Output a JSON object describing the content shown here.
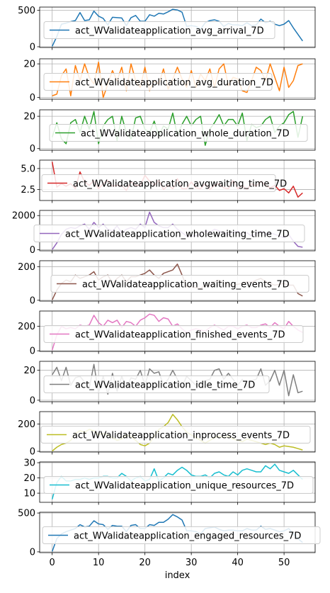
{
  "chart_data": {
    "type": "line",
    "xlabel": "index",
    "xticks": [
      0,
      10,
      20,
      30,
      40,
      50
    ],
    "xlim": [
      -2.7,
      56.7
    ],
    "grid": true,
    "legend_loc": "best",
    "panels": [
      {
        "name": "act_WValidateapplication_avg_arrival_7D",
        "color": "#1f77b4",
        "ylim": [
          -10,
          545
        ],
        "yticks": [
          0,
          500
        ],
        "values": [
          5,
          140,
          310,
          325,
          345,
          360,
          470,
          360,
          370,
          490,
          420,
          390,
          300,
          405,
          400,
          395,
          290,
          400,
          430,
          350,
          350,
          440,
          420,
          460,
          450,
          480,
          515,
          505,
          475,
          280,
          290,
          280,
          240,
          330,
          360,
          370,
          350,
          280,
          320,
          300,
          300,
          290,
          330,
          290,
          300,
          380,
          330,
          350,
          310,
          290,
          310,
          360,
          260,
          170,
          80
        ]
      },
      {
        "name": "act_WValidateapplication_avg_duration_7D",
        "color": "#ff7f0e",
        "ylim": [
          -1,
          23
        ],
        "yticks": [
          0,
          20
        ],
        "values": [
          1,
          2,
          13,
          17,
          1,
          19,
          10,
          20,
          12,
          8,
          21,
          0,
          8,
          16,
          10,
          18,
          4,
          20,
          10,
          6,
          18,
          4,
          10,
          8,
          17,
          5,
          11,
          18,
          11,
          6,
          16,
          6,
          14,
          10,
          17,
          6,
          17,
          20,
          7,
          12,
          11,
          4,
          3,
          10,
          18,
          16,
          10,
          20,
          12,
          4,
          18,
          6,
          10,
          19,
          20
        ]
      },
      {
        "name": "act_WValidateapplication_whole_duration_7D",
        "color": "#2ca02c",
        "ylim": [
          -1,
          24
        ],
        "yticks": [
          0,
          20
        ],
        "values": [
          7,
          16,
          6,
          3,
          16,
          18,
          10,
          20,
          12,
          23,
          3,
          14,
          18,
          20,
          5,
          20,
          10,
          6,
          19,
          20,
          12,
          10,
          17,
          8,
          14,
          12,
          22,
          8,
          15,
          20,
          14,
          18,
          20,
          2,
          12,
          16,
          21,
          14,
          18,
          18,
          14,
          22,
          5,
          15,
          13,
          14,
          18,
          20,
          10,
          14,
          16,
          21,
          23,
          7,
          20
        ]
      },
      {
        "name": "act_WValidateapplication_avgwaiting_time_7D",
        "color": "#d62728",
        "ylim": [
          1.2,
          6.0
        ],
        "yticks": [
          2.5,
          5.0
        ],
        "yticklabels": [
          "2.5",
          "5.0"
        ],
        "values": [
          5.8,
          2.8,
          3.2,
          2.9,
          3.2,
          2.6,
          4.6,
          3.4,
          3.0,
          3.6,
          2.6,
          3.2,
          3.6,
          2.9,
          3.0,
          3.0,
          2.4,
          3.4,
          3.0,
          3.0,
          4.2,
          3.5,
          3.0,
          3.6,
          2.5,
          3.0,
          2.6,
          3.8,
          2.6,
          2.6,
          3.4,
          2.7,
          2.6,
          3.2,
          2.5,
          3.0,
          3.2,
          2.7,
          2.6,
          3.6,
          2.6,
          3.0,
          2.5,
          3.2,
          2.9,
          3.5,
          3.0,
          2.7,
          3.0,
          2.4,
          2.6,
          2.1,
          2.9,
          1.6,
          2.1
        ]
      },
      {
        "name": "act_WValidateapplication_wholewaiting_time_7D",
        "color": "#9467bd",
        "ylim": [
          -60,
          2300
        ],
        "yticks": [
          0,
          2000
        ],
        "values": [
          10,
          400,
          900,
          1200,
          1300,
          1250,
          1400,
          1500,
          1200,
          1600,
          1300,
          1500,
          1200,
          1100,
          1400,
          1000,
          1200,
          1300,
          1200,
          1500,
          1300,
          2200,
          1600,
          1400,
          1300,
          1300,
          1500,
          1200,
          1000,
          800,
          780,
          820,
          900,
          1100,
          1000,
          1200,
          1100,
          1000,
          900,
          1000,
          1100,
          900,
          1000,
          800,
          950,
          1100,
          900,
          1000,
          900,
          800,
          700,
          900,
          500,
          200,
          150
        ]
      },
      {
        "name": "act_WValidateapplication_waiting_events_7D",
        "color": "#8c564b",
        "ylim": [
          -5,
          235
        ],
        "yticks": [
          0,
          200
        ],
        "values": [
          2,
          60,
          100,
          120,
          110,
          150,
          130,
          140,
          150,
          170,
          120,
          140,
          150,
          100,
          130,
          150,
          110,
          140,
          140,
          150,
          160,
          180,
          150,
          130,
          160,
          170,
          180,
          215,
          150,
          80,
          80,
          75,
          70,
          90,
          85,
          110,
          120,
          100,
          95,
          90,
          95,
          100,
          110,
          105,
          120,
          130,
          110,
          100,
          90,
          95,
          100,
          90,
          90,
          40,
          25
        ]
      },
      {
        "name": "act_WValidateapplication_finished_events_7D",
        "color": "#e377c2",
        "ylim": [
          -5,
          325
        ],
        "yticks": [
          0,
          200
        ],
        "values": [
          5,
          130,
          200,
          180,
          190,
          180,
          210,
          200,
          210,
          290,
          230,
          200,
          250,
          230,
          250,
          190,
          240,
          230,
          200,
          250,
          270,
          300,
          290,
          240,
          270,
          260,
          200,
          220,
          180,
          150,
          170,
          180,
          170,
          160,
          190,
          210,
          190,
          170,
          200,
          200,
          180,
          200,
          210,
          190,
          190,
          210,
          220,
          190,
          230,
          200,
          180,
          240,
          200,
          170,
          150
        ]
      },
      {
        "name": "act_WValidateapplication_idle_time_7D",
        "color": "#7f7f7f",
        "ylim": [
          -1,
          26
        ],
        "yticks": [
          0,
          20
        ],
        "values": [
          17,
          22,
          13,
          22,
          10,
          15,
          16,
          12,
          8,
          24,
          5,
          16,
          4,
          18,
          6,
          16,
          8,
          15,
          14,
          20,
          10,
          21,
          18,
          19,
          10,
          14,
          20,
          14,
          9,
          16,
          13,
          10,
          12,
          13,
          14,
          20,
          21,
          14,
          18,
          14,
          10,
          14,
          9,
          13,
          14,
          21,
          10,
          13,
          20,
          10,
          20,
          3,
          17,
          5,
          6
        ]
      },
      {
        "name": "act_WValidateapplication_inprocess_events_7D",
        "color": "#bcbd22",
        "ylim": [
          -5,
          290
        ],
        "yticks": [
          0,
          200
        ],
        "values": [
          2,
          30,
          50,
          60,
          80,
          130,
          150,
          140,
          160,
          150,
          120,
          130,
          120,
          100,
          80,
          90,
          120,
          110,
          80,
          50,
          40,
          60,
          110,
          160,
          180,
          210,
          270,
          230,
          180,
          140,
          120,
          100,
          80,
          60,
          80,
          100,
          110,
          100,
          110,
          90,
          80,
          70,
          90,
          80,
          70,
          60,
          50,
          60,
          50,
          30,
          40,
          35,
          30,
          20,
          10
        ]
      },
      {
        "name": "act_WValidateapplication_unique_resources_7D",
        "color": "#17becf",
        "ylim": [
          4,
          30.5
        ],
        "yticks": [
          10,
          20,
          30
        ],
        "values": [
          6,
          17,
          21,
          18,
          18,
          19,
          19,
          20,
          19,
          20,
          20,
          21,
          21,
          20,
          20,
          23,
          21,
          18,
          20,
          21,
          18,
          19,
          26,
          18,
          20,
          23,
          22,
          25,
          27,
          25,
          22,
          21,
          21,
          22,
          20,
          23,
          24,
          22,
          21,
          24,
          22,
          25,
          26,
          25,
          24,
          24,
          28,
          26,
          29,
          25,
          24,
          23,
          25,
          22,
          19
        ]
      },
      {
        "name": "act_WValidateapplication_engaged_resources_7D",
        "color": "#1f77b4",
        "ylim": [
          -10,
          510
        ],
        "yticks": [
          0,
          500
        ],
        "values": [
          5,
          170,
          230,
          260,
          280,
          300,
          350,
          320,
          330,
          400,
          360,
          350,
          290,
          340,
          330,
          330,
          260,
          340,
          350,
          300,
          300,
          350,
          340,
          380,
          380,
          420,
          480,
          450,
          410,
          270,
          270,
          260,
          230,
          300,
          310,
          320,
          290,
          270,
          280,
          280,
          270,
          270,
          300,
          280,
          280,
          330,
          290,
          300,
          280,
          260,
          270,
          300,
          230,
          170,
          120
        ]
      }
    ]
  }
}
